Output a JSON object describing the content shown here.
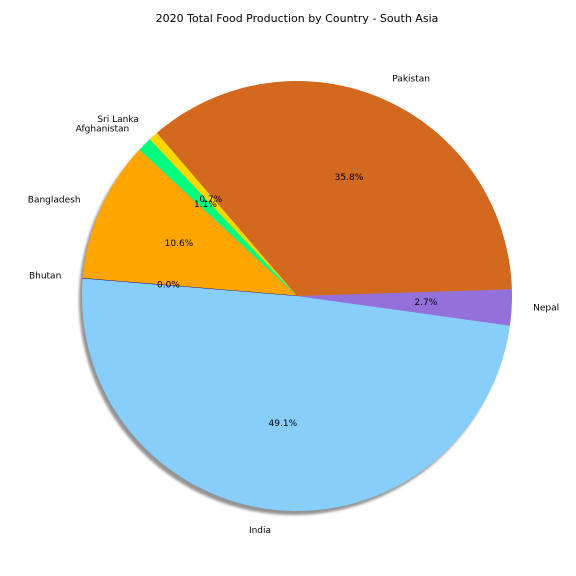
{
  "chart_data": {
    "type": "pie",
    "title": "2020 Total Food Production by Country - South Asia",
    "shadow": true,
    "start_angle_deg": 133.2,
    "direction": "counterclockwise",
    "slices": [
      {
        "label": "Afghanistan",
        "value": 1.1,
        "pct_label": "1.1%",
        "color": "#00FF7F"
      },
      {
        "label": "Bangladesh",
        "value": 10.6,
        "pct_label": "10.6%",
        "color": "#FFA500"
      },
      {
        "label": "Bhutan",
        "value": 0.0,
        "pct_label": "0.0%",
        "color": "#000080"
      },
      {
        "label": "India",
        "value": 49.1,
        "pct_label": "49.1%",
        "color": "#87CEFA"
      },
      {
        "label": "Nepal",
        "value": 2.7,
        "pct_label": "2.7%",
        "color": "#9370DB"
      },
      {
        "label": "Pakistan",
        "value": 35.8,
        "pct_label": "35.8%",
        "color": "#D2691E"
      },
      {
        "label": "Sri Lanka",
        "value": 0.7,
        "pct_label": "0.7%",
        "color": "#FFD700"
      }
    ]
  }
}
